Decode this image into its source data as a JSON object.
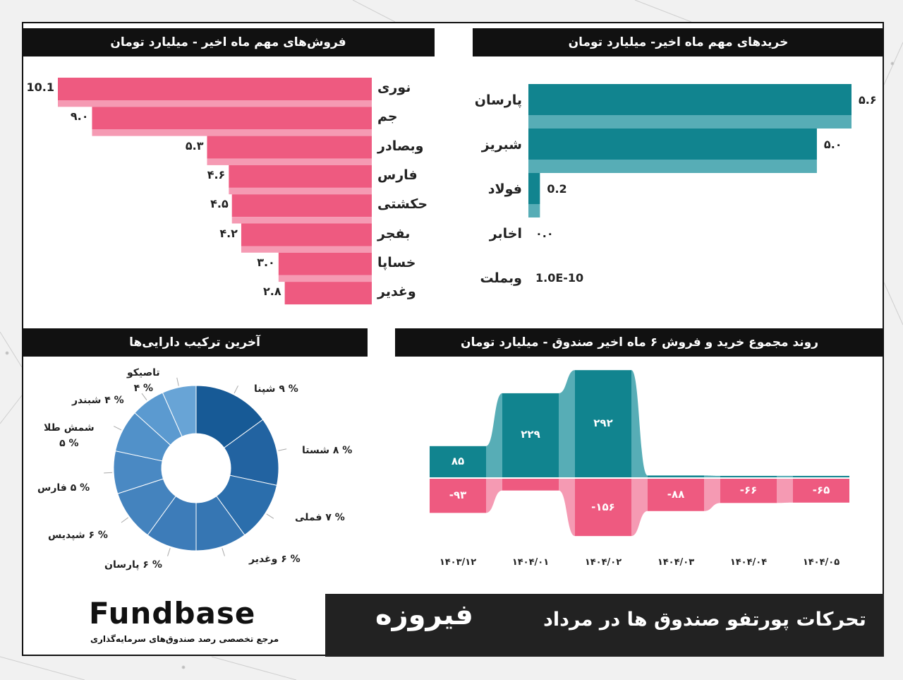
{
  "colors": {
    "sell": "#ee5a80",
    "buy": "#11848f",
    "sell_light": "#f59ab3",
    "buy_light": "#57adb6"
  },
  "sales_panel": {
    "title": "فروش‌های مهم ماه اخیر - میلیارد تومان"
  },
  "purchases_panel": {
    "title": "خریدهای مهم ماه اخیر- میلیارد تومان"
  },
  "composition_panel": {
    "title": "آخرین ترکیب دارایی‌ها"
  },
  "trend_panel": {
    "title": "روند مجموع خرید و فروش ۶ ماه اخیر صندوق - میلیارد تومان"
  },
  "footer": {
    "fund_name": "فیروزه",
    "subtitle": "تحرکات پورتفو صندوق ها در مرداد",
    "logo_text": "Fundbase",
    "logo_sub": "مرجع تخصصی رصد صندوق‌های سرمایه‌گذاری"
  },
  "chart_data": [
    {
      "type": "bar",
      "orientation": "horizontal",
      "title": "فروش‌های مهم ماه اخیر - میلیارد تومان",
      "categories": [
        "نوری",
        "جم",
        "وبصادر",
        "فارس",
        "حکشتی",
        "بفجر",
        "خساپا",
        "وغدیر"
      ],
      "values": [
        10.1,
        9.0,
        5.3,
        4.6,
        4.5,
        4.2,
        3.0,
        2.8
      ],
      "value_labels": [
        "10.1",
        "۹.۰",
        "۵.۳",
        "۴.۶",
        "۴.۵",
        "۴.۲",
        "۳.۰",
        "۲.۸"
      ]
    },
    {
      "type": "bar",
      "orientation": "horizontal",
      "title": "خریدهای مهم ماه اخیر- میلیارد تومان",
      "categories": [
        "پارسان",
        "شبریز",
        "فولاد",
        "اخابر",
        "وبملت"
      ],
      "values": [
        5.6,
        5.0,
        0.2,
        0.0,
        1e-10
      ],
      "value_labels": [
        "۵.۶",
        "۵.۰",
        "0.2",
        "۰.۰",
        "1.0E-10"
      ]
    },
    {
      "type": "pie",
      "title": "آخرین ترکیب دارایی‌ها",
      "slices": [
        {
          "label": "% ۹ شپنا",
          "value": 9,
          "color": "#175a96"
        },
        {
          "label": "% ۸ شستا",
          "value": 8,
          "color": "#2263a1"
        },
        {
          "label": "% ۷ فملی",
          "value": 7,
          "color": "#2b6eac"
        },
        {
          "label": "% ۶ وغدیر",
          "value": 6,
          "color": "#3676b3"
        },
        {
          "label": "% ۶ پارسان",
          "value": 6,
          "color": "#3d7cb9"
        },
        {
          "label": "% ۶ شپدیس",
          "value": 6,
          "color": "#4483be"
        },
        {
          "label": "% ۵ فارس",
          "value": 5,
          "color": "#4a89c3"
        },
        {
          "label": "شمش طلا\n% ۵",
          "value": 5,
          "color": "#5191c9"
        },
        {
          "label": "% ۴ شبندر",
          "value": 4,
          "color": "#5b9ad0"
        },
        {
          "label": "تاصیکو\n% ۴",
          "value": 4,
          "color": "#68a4d6"
        }
      ]
    },
    {
      "type": "bar",
      "title": "روند مجموع خرید و فروش ۶ ماه اخیر صندوق - میلیارد تومان",
      "categories": [
        "۱۴۰۳/۱۲",
        "۱۴۰۴/۰۱",
        "۱۴۰۴/۰۲",
        "۱۴۰۴/۰۳",
        "۱۴۰۴/۰۴",
        "۱۴۰۴/۰۵"
      ],
      "series": [
        {
          "values": [
            85,
            229,
            292,
            5,
            4,
            4
          ],
          "labels": [
            "۸۵",
            "۲۲۹",
            "۲۹۲",
            "",
            "",
            ""
          ]
        },
        {
          "values": [
            -93,
            -32,
            -156,
            -88,
            -66,
            -65
          ],
          "labels": [
            "-۹۳",
            "",
            "-۱۵۶",
            "-۸۸",
            "-۶۶",
            "-۶۵"
          ]
        }
      ]
    }
  ]
}
